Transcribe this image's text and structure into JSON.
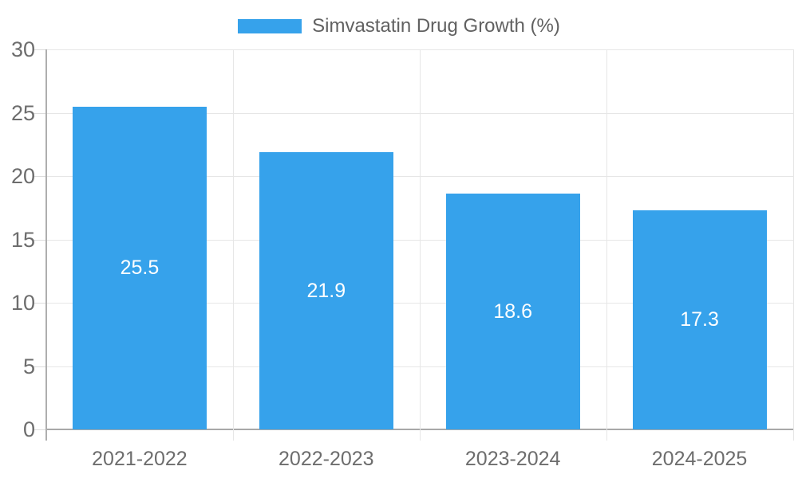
{
  "chart_data": {
    "type": "bar",
    "legend_label": "Simvastatin Drug Growth (%)",
    "categories": [
      "2021-2022",
      "2022-2023",
      "2023-2024",
      "2024-2025"
    ],
    "values": [
      25.5,
      21.9,
      18.6,
      17.3
    ],
    "value_labels": [
      "25.5",
      "21.9",
      "18.6",
      "17.3"
    ],
    "yticks": [
      0,
      5,
      10,
      15,
      20,
      25,
      30
    ],
    "ylim": [
      0,
      30
    ],
    "xlabel": "",
    "ylabel": "",
    "grid": true,
    "legend_position": "top-center",
    "value_label_position": "inside-center"
  },
  "colors": {
    "bar": "#36a2eb",
    "gridline": "#e6e6e6",
    "axis_line": "#aeaeae",
    "baseline": "#a8a8a8",
    "tick_mark": "#dcdcdc",
    "tick_text": "#6d6d6d",
    "legend_text": "#616161",
    "value_text": "#ffffff",
    "background": "#ffffff"
  }
}
